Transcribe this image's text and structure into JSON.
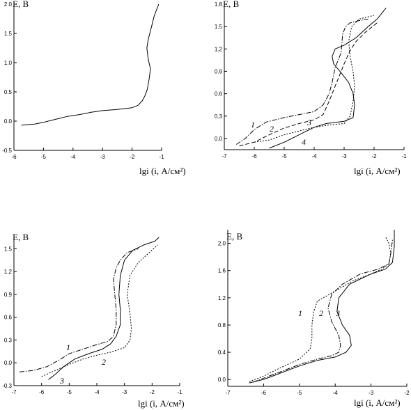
{
  "chart_data": [
    {
      "type": "line",
      "ylabel": "E, В",
      "xlabel": "lgi (i, А/см²)",
      "xlim": [
        -6,
        -1
      ],
      "ylim": [
        -0.5,
        2.0
      ],
      "xticks": [
        "-6",
        "-5",
        "-4",
        "-3",
        "-2",
        "-1"
      ],
      "yticks": [
        "-0.5",
        "0.0",
        "0.5",
        "1.0",
        "1.5",
        "2.0"
      ],
      "series": [
        {
          "style": "solid",
          "x": [
            -5.75,
            -5.3,
            -5.0,
            -4.6,
            -4.2,
            -3.8,
            -3.4,
            -3.0,
            -2.5,
            -2.0,
            -1.8,
            -1.65,
            -1.55,
            -1.48,
            -1.43,
            -1.4,
            -1.38,
            -1.45,
            -1.5,
            -1.45,
            -1.35,
            -1.25,
            -1.1
          ],
          "y": [
            -0.07,
            -0.05,
            -0.02,
            0.03,
            0.08,
            0.11,
            0.15,
            0.18,
            0.2,
            0.23,
            0.27,
            0.35,
            0.45,
            0.55,
            0.7,
            0.8,
            0.9,
            1.05,
            1.25,
            1.4,
            1.6,
            1.8,
            2.0
          ]
        }
      ]
    },
    {
      "type": "line",
      "ylabel": "E, В",
      "xlabel": "lgi (i, А/см²)",
      "xlim": [
        -7,
        -1
      ],
      "ylim": [
        -0.15,
        1.8
      ],
      "xticks": [
        "-7",
        "-6",
        "-5",
        "-4",
        "-3",
        "-2",
        "-1"
      ],
      "yticks": [
        "0.0",
        "0.3",
        "0.6",
        "0.9",
        "1.2",
        "1.5",
        "1.8"
      ],
      "series": [
        {
          "name": "1",
          "style": "dashdot",
          "x": [
            -6.6,
            -6.3,
            -6.0,
            -5.6,
            -5.0,
            -4.5,
            -4.0,
            -3.7,
            -3.5,
            -3.4,
            -3.35,
            -3.3,
            -3.2,
            -3.1,
            -3.05,
            -2.95,
            -2.8,
            -2.5,
            -2.2
          ],
          "y": [
            -0.08,
            0.0,
            0.12,
            0.22,
            0.28,
            0.32,
            0.36,
            0.45,
            0.6,
            0.75,
            0.85,
            0.95,
            1.05,
            1.15,
            1.4,
            1.5,
            1.55,
            1.58,
            1.6
          ]
        },
        {
          "name": "2",
          "style": "dashed",
          "x": [
            -6.5,
            -6.0,
            -5.5,
            -5.0,
            -4.5,
            -4.0,
            -3.7,
            -3.5,
            -3.3,
            -3.15,
            -3.0,
            -2.8,
            -2.6,
            -2.3,
            -1.9
          ],
          "y": [
            -0.1,
            -0.05,
            0.05,
            0.14,
            0.2,
            0.25,
            0.32,
            0.5,
            0.7,
            0.85,
            1.0,
            1.18,
            1.3,
            1.42,
            1.55
          ]
        },
        {
          "name": "3",
          "style": "dotted",
          "x": [
            -6.0,
            -5.5,
            -5.0,
            -4.5,
            -4.0,
            -3.5,
            -3.0,
            -2.8,
            -2.7,
            -2.65,
            -2.7,
            -2.8,
            -2.85,
            -2.75,
            -2.5,
            -2.0
          ],
          "y": [
            -0.05,
            -0.02,
            0.05,
            0.1,
            0.15,
            0.18,
            0.2,
            0.3,
            0.5,
            0.7,
            0.9,
            1.1,
            1.3,
            1.5,
            1.6,
            1.65
          ]
        },
        {
          "name": "4",
          "style": "solid",
          "x": [
            -5.5,
            -5.0,
            -4.5,
            -4.0,
            -3.6,
            -3.0,
            -2.7,
            -2.65,
            -2.7,
            -2.85,
            -3.1,
            -3.35,
            -3.4,
            -3.3,
            -3.0,
            -2.6,
            -2.2,
            -1.9,
            -1.6
          ],
          "y": [
            -0.13,
            -0.05,
            0.05,
            0.15,
            0.2,
            0.23,
            0.28,
            0.45,
            0.6,
            0.75,
            0.88,
            1.0,
            1.1,
            1.2,
            1.25,
            1.35,
            1.5,
            1.6,
            1.75
          ]
        }
      ]
    },
    {
      "type": "line",
      "ylabel": "E, В",
      "xlabel": "lgi (i, А/см²)",
      "xlim": [
        -7,
        -1
      ],
      "ylim": [
        -0.3,
        1.65
      ],
      "xticks": [
        "-7",
        "-6",
        "-5",
        "-4",
        "-3",
        "-2",
        "-1"
      ],
      "yticks": [
        "-0.3",
        "0.0",
        "0.3",
        "0.6",
        "0.9",
        "1.2",
        "1.5"
      ],
      "series": [
        {
          "name": "1",
          "style": "dashdot",
          "x": [
            -6.8,
            -6.3,
            -5.8,
            -5.3,
            -5.0,
            -4.5,
            -4.0,
            -3.6,
            -3.4,
            -3.3,
            -3.3,
            -3.35,
            -3.4,
            -3.3,
            -3.15,
            -2.9,
            -2.5
          ],
          "y": [
            -0.12,
            -0.1,
            -0.05,
            0.05,
            0.12,
            0.18,
            0.24,
            0.28,
            0.35,
            0.5,
            0.7,
            0.9,
            1.1,
            1.25,
            1.35,
            1.45,
            1.5
          ]
        },
        {
          "name": "2",
          "style": "dotted",
          "x": [
            -6.0,
            -5.5,
            -5.0,
            -4.5,
            -4.0,
            -3.5,
            -3.0,
            -2.8,
            -2.75,
            -2.8,
            -2.9,
            -2.8,
            -2.5,
            -2.1,
            -1.8
          ],
          "y": [
            -0.18,
            -0.1,
            -0.02,
            0.05,
            0.1,
            0.14,
            0.2,
            0.3,
            0.45,
            0.65,
            0.9,
            1.15,
            1.32,
            1.45,
            1.55
          ]
        },
        {
          "name": "3",
          "style": "solid",
          "x": [
            -5.75,
            -5.5,
            -5.2,
            -4.8,
            -4.3,
            -3.8,
            -3.5,
            -3.3,
            -3.15,
            -3.15,
            -3.2,
            -3.15,
            -3.0,
            -2.7,
            -2.3,
            -1.9,
            -1.75
          ],
          "y": [
            -0.22,
            -0.15,
            -0.05,
            0.05,
            0.12,
            0.18,
            0.25,
            0.35,
            0.5,
            0.7,
            0.9,
            1.15,
            1.35,
            1.48,
            1.55,
            1.6,
            1.65
          ]
        }
      ]
    },
    {
      "type": "line",
      "ylabel": "E, В",
      "xlabel": "lgi (i, А/см²)",
      "xlim": [
        -7,
        -2
      ],
      "ylim": [
        -0.1,
        2.2
      ],
      "xticks": [
        "-7",
        "-6",
        "-5",
        "-4",
        "-3",
        "-2"
      ],
      "yticks": [
        "0.0",
        "0.4",
        "0.8",
        "1.2",
        "1.6",
        "2.0"
      ],
      "series": [
        {
          "name": "1",
          "style": "dotted",
          "x": [
            -6.4,
            -6.0,
            -5.5,
            -5.0,
            -4.7,
            -4.65,
            -4.65,
            -4.6,
            -4.5,
            -4.0,
            -3.5,
            -3.0,
            -2.7,
            -2.5,
            -2.45,
            -2.5,
            -2.6
          ],
          "y": [
            -0.03,
            0.05,
            0.18,
            0.3,
            0.45,
            0.6,
            0.8,
            1.0,
            1.15,
            1.3,
            1.45,
            1.55,
            1.62,
            1.7,
            1.85,
            2.0,
            2.1
          ]
        },
        {
          "name": "2",
          "style": "dashdot",
          "x": [
            -6.3,
            -6.0,
            -5.5,
            -5.0,
            -4.5,
            -4.1,
            -3.9,
            -3.85,
            -3.9,
            -4.1,
            -4.2,
            -4.1,
            -3.8,
            -3.3,
            -2.8,
            -2.5,
            -2.45,
            -2.4
          ],
          "y": [
            -0.04,
            0.02,
            0.12,
            0.22,
            0.3,
            0.35,
            0.4,
            0.5,
            0.65,
            0.85,
            1.05,
            1.25,
            1.4,
            1.55,
            1.62,
            1.7,
            1.85,
            2.05
          ]
        },
        {
          "name": "3",
          "style": "solid",
          "x": [
            -6.4,
            -6.0,
            -5.5,
            -5.0,
            -4.5,
            -4.0,
            -3.7,
            -3.55,
            -3.6,
            -3.8,
            -3.95,
            -3.9,
            -3.6,
            -3.0,
            -2.6,
            -2.4,
            -2.35,
            -2.35
          ],
          "y": [
            -0.05,
            0.0,
            0.1,
            0.2,
            0.28,
            0.33,
            0.4,
            0.5,
            0.65,
            0.8,
            1.0,
            1.2,
            1.4,
            1.55,
            1.62,
            1.72,
            1.95,
            2.2
          ]
        }
      ]
    }
  ]
}
